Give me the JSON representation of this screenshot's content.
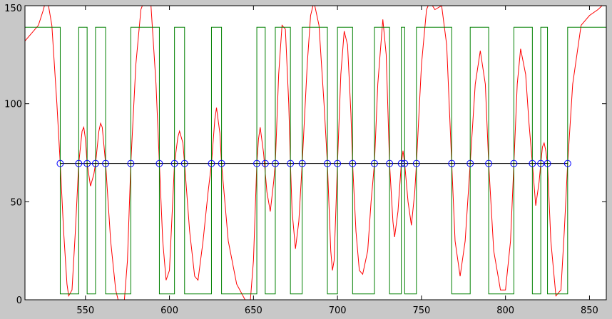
{
  "chart_data": {
    "type": "line",
    "xlim": [
      514,
      860
    ],
    "ylim": [
      0,
      150
    ],
    "xticks": [
      550,
      600,
      650,
      700,
      750,
      800,
      850
    ],
    "yticks": [
      0,
      50,
      100,
      150
    ],
    "grid": false,
    "series": [
      {
        "color": "#ff0000",
        "style": "line",
        "x": [
          514,
          518,
          522,
          525,
          527,
          530,
          533,
          535,
          537,
          539,
          540,
          542,
          544,
          546,
          548,
          549,
          550,
          551,
          553,
          555,
          556,
          558,
          559,
          560,
          562,
          565,
          568,
          570,
          573,
          575,
          577,
          580,
          583,
          586,
          589,
          592,
          594,
          596,
          598,
          600,
          603,
          605,
          606,
          608,
          609,
          612,
          615,
          617,
          620,
          623,
          625,
          627,
          628,
          630,
          631,
          635,
          640,
          645,
          648,
          650,
          652,
          653,
          654,
          656,
          658,
          660,
          662,
          663,
          665,
          667,
          669,
          671,
          672,
          673,
          675,
          677,
          679,
          682,
          684,
          686,
          689,
          692,
          694,
          696,
          697,
          698,
          700,
          702,
          704,
          706,
          708,
          709,
          711,
          713,
          715,
          718,
          720,
          722,
          724,
          727,
          729,
          731,
          733,
          734,
          736,
          738,
          739,
          740,
          742,
          744,
          746,
          747,
          750,
          753,
          755,
          758,
          762,
          765,
          768,
          770,
          773,
          776,
          779,
          782,
          785,
          788,
          790,
          793,
          797,
          800,
          803,
          805,
          807,
          809,
          812,
          814,
          816,
          818,
          820,
          821,
          822,
          823,
          824,
          825,
          827,
          830,
          833,
          835,
          837,
          840,
          845,
          850,
          855,
          860
        ],
        "values": [
          132,
          136,
          140,
          148,
          155,
          140,
          100,
          69.5,
          35,
          8,
          2,
          5,
          35,
          69.5,
          86,
          88,
          82,
          69.5,
          58,
          64,
          69.5,
          86,
          90,
          88,
          69.5,
          30,
          5,
          -2,
          -2,
          20,
          69.5,
          120,
          148,
          155,
          150,
          110,
          69.5,
          30,
          10,
          15,
          69.5,
          83,
          86,
          80,
          69.5,
          35,
          12,
          10,
          30,
          55,
          69.5,
          92,
          98,
          85,
          69.5,
          30,
          8,
          0,
          -2,
          20,
          69.5,
          82,
          88,
          75,
          55,
          45,
          60,
          69.5,
          115,
          140,
          138,
          100,
          69.5,
          45,
          26,
          40,
          69.5,
          120,
          145,
          152,
          140,
          100,
          69.5,
          25,
          15,
          20,
          69.5,
          115,
          137,
          130,
          95,
          69.5,
          35,
          15,
          13,
          25,
          50,
          69.5,
          110,
          143,
          125,
          69.5,
          40,
          32,
          45,
          69.5,
          76,
          69.5,
          50,
          38,
          55,
          69.5,
          120,
          148,
          152,
          148,
          150,
          130,
          69.5,
          30,
          12,
          30,
          69.5,
          110,
          127,
          110,
          69.5,
          25,
          5,
          5,
          30,
          69.5,
          110,
          128,
          115,
          90,
          69.5,
          48,
          60,
          69.5,
          78,
          80,
          76,
          69.5,
          30,
          2,
          5,
          35,
          69.5,
          110,
          140,
          145,
          148,
          152
        ]
      },
      {
        "color": "#008000",
        "style": "line",
        "x": [
          514,
          535,
          535,
          546,
          546,
          551,
          551,
          556,
          556,
          562,
          562,
          577,
          577,
          594,
          594,
          603,
          603,
          609,
          609,
          625,
          625,
          631,
          631,
          652,
          652,
          657,
          657,
          663,
          663,
          672,
          672,
          679,
          679,
          694,
          694,
          700,
          700,
          709,
          709,
          722,
          722,
          731,
          731,
          738,
          738,
          740,
          740,
          747,
          747,
          768,
          768,
          779,
          779,
          790,
          790,
          805,
          805,
          816,
          816,
          821,
          821,
          825,
          825,
          837,
          837,
          860
        ],
        "values": [
          139,
          139,
          3,
          3,
          139,
          139,
          3,
          3,
          139,
          139,
          3,
          3,
          139,
          139,
          3,
          3,
          139,
          139,
          3,
          3,
          139,
          139,
          3,
          3,
          139,
          139,
          3,
          3,
          139,
          139,
          3,
          3,
          139,
          139,
          3,
          3,
          139,
          139,
          3,
          3,
          139,
          139,
          3,
          3,
          139,
          139,
          3,
          3,
          139,
          139,
          3,
          3,
          139,
          139,
          3,
          3,
          139,
          139,
          3,
          3,
          139,
          139,
          3,
          3,
          139,
          139
        ]
      },
      {
        "color": "#000000",
        "style": "line",
        "x": [
          535,
          837
        ],
        "values": [
          69.5,
          69.5
        ]
      },
      {
        "color": "#0000ff",
        "style": "markers",
        "x": [
          535,
          546,
          551,
          556,
          562,
          577,
          594,
          603,
          609,
          625,
          631,
          652,
          657,
          663,
          672,
          679,
          694,
          700,
          709,
          722,
          731,
          738,
          740,
          747,
          768,
          779,
          790,
          805,
          816,
          821,
          825,
          837
        ],
        "values": [
          69.5,
          69.5,
          69.5,
          69.5,
          69.5,
          69.5,
          69.5,
          69.5,
          69.5,
          69.5,
          69.5,
          69.5,
          69.5,
          69.5,
          69.5,
          69.5,
          69.5,
          69.5,
          69.5,
          69.5,
          69.5,
          69.5,
          69.5,
          69.5,
          69.5,
          69.5,
          69.5,
          69.5,
          69.5,
          69.5,
          69.5,
          69.5
        ]
      }
    ]
  }
}
